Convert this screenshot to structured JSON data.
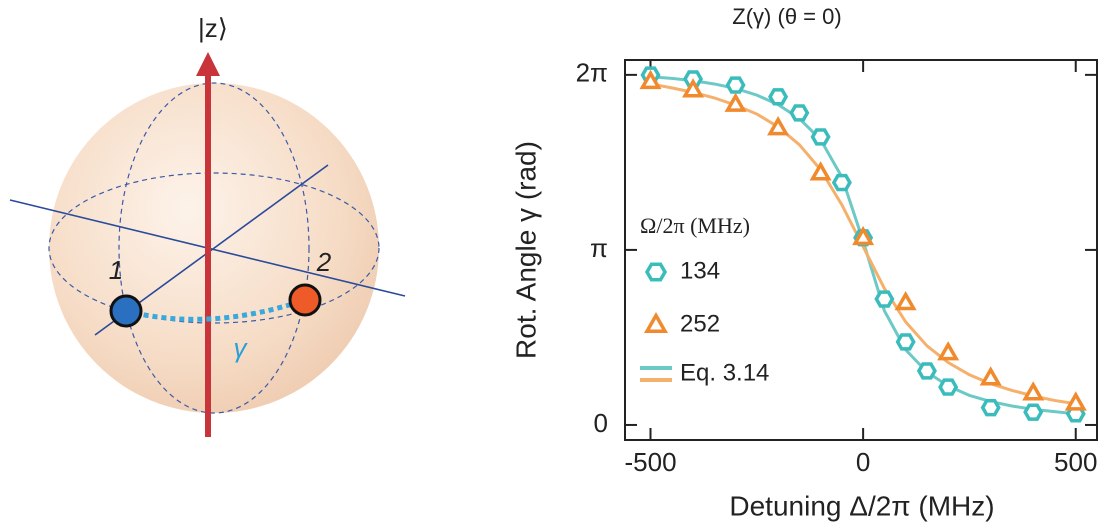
{
  "diagram": {
    "axis_label": "|z⟩",
    "point_labels": [
      "1",
      "2"
    ],
    "angle_label": "γ"
  },
  "chart_data": {
    "type": "scatter",
    "title": "Z(γ) (θ = 0)",
    "x_label": "Detuning  Δ/2π (MHz)",
    "y_label": "Rot. Angle  γ (rad)",
    "legend_title": "Ω/2π (MHz)",
    "xlim": [
      -560,
      550
    ],
    "xticks": [
      -500,
      0,
      500
    ],
    "ylim": [
      -0.27,
      6.55
    ],
    "yticks": [
      0,
      {
        "value": 3.1416,
        "label": "π"
      },
      {
        "value": 6.2832,
        "label": "2π"
      }
    ],
    "series": [
      {
        "name": "134",
        "color": "#3bbcbc",
        "marker": "hexagon",
        "x": [
          -500,
          -400,
          -300,
          -200,
          -150,
          -100,
          -50,
          0,
          50,
          100,
          150,
          200,
          300,
          400,
          500
        ],
        "values": [
          6.28,
          6.21,
          6.1,
          5.89,
          5.6,
          5.17,
          4.35,
          3.36,
          2.26,
          1.49,
          0.97,
          0.68,
          0.31,
          0.23,
          0.2
        ]
      },
      {
        "name": "252",
        "color": "#f08a2c",
        "marker": "triangle",
        "x": [
          -500,
          -400,
          -300,
          -200,
          -100,
          0,
          100,
          200,
          300,
          400,
          500
        ],
        "values": [
          6.16,
          6.01,
          5.75,
          5.33,
          4.52,
          3.36,
          2.19,
          1.29,
          0.84,
          0.57,
          0.39
        ]
      }
    ],
    "fit_label": "Eq. 3.14",
    "fits": [
      {
        "color": "#6cc9c6",
        "x": [
          -500,
          -450,
          -400,
          -350,
          -300,
          -250,
          -200,
          -150,
          -100,
          -50,
          0,
          50,
          100,
          150,
          200,
          250,
          300,
          350,
          400,
          450,
          500
        ],
        "values": [
          6.25,
          6.22,
          6.18,
          6.12,
          6.04,
          5.92,
          5.75,
          5.5,
          5.12,
          4.45,
          3.3,
          2.05,
          1.35,
          0.95,
          0.7,
          0.53,
          0.42,
          0.34,
          0.28,
          0.24,
          0.2
        ]
      },
      {
        "color": "#f5b06c",
        "x": [
          -500,
          -450,
          -400,
          -350,
          -300,
          -250,
          -200,
          -150,
          -100,
          -50,
          0,
          50,
          100,
          150,
          200,
          250,
          300,
          350,
          400,
          450,
          500
        ],
        "values": [
          6.12,
          6.05,
          5.97,
          5.87,
          5.74,
          5.58,
          5.35,
          5.03,
          4.58,
          3.95,
          3.2,
          2.45,
          1.85,
          1.42,
          1.12,
          0.9,
          0.74,
          0.62,
          0.52,
          0.44,
          0.38
        ]
      }
    ]
  }
}
